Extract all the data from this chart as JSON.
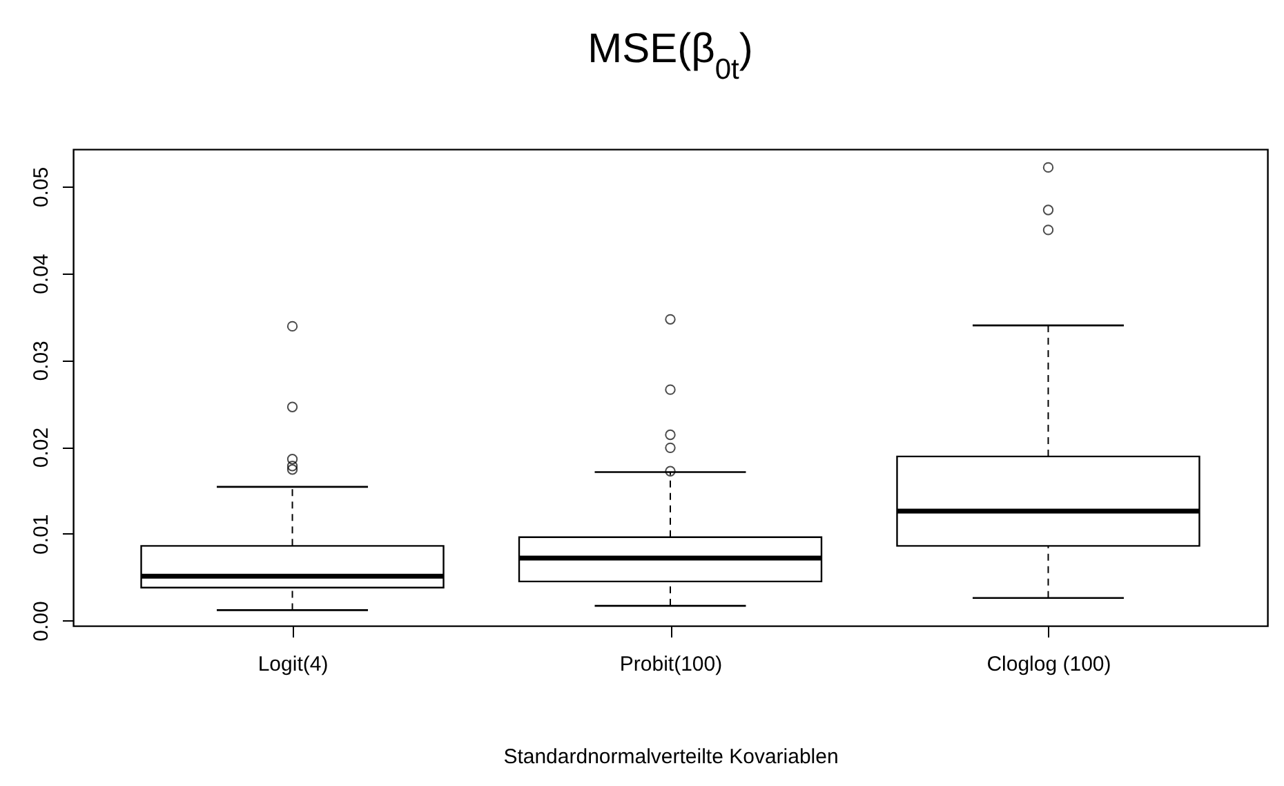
{
  "chart_data": {
    "type": "box",
    "title": "MSE(β$_{0t}$)",
    "xlabel": "Standardnormalverteilte Kovariablen",
    "categories": [
      "Logit(4)",
      "Probit(100)",
      "Cloglog (100)"
    ],
    "boxes": [
      {
        "low": 0.0012,
        "q1": 0.0038,
        "median": 0.0051,
        "q3": 0.0086,
        "high": 0.0154,
        "outliers": [
          0.0339,
          0.0246,
          0.0186,
          0.0178,
          0.0174
        ]
      },
      {
        "low": 0.0017,
        "q1": 0.0045,
        "median": 0.0072,
        "q3": 0.0096,
        "high": 0.0171,
        "outliers": [
          0.0347,
          0.0266,
          0.0214,
          0.0199,
          0.0172
        ]
      },
      {
        "low": 0.0026,
        "q1": 0.0086,
        "median": 0.0126,
        "q3": 0.0189,
        "high": 0.034,
        "outliers": [
          0.0522,
          0.0473,
          0.045
        ]
      }
    ],
    "ylim": [
      -0.0006,
      0.0543
    ],
    "yticks": [
      {
        "value": 0,
        "label": "0.00"
      },
      0.01,
      0.02,
      0.03,
      0.04,
      0.05
    ],
    "grid": false
  }
}
